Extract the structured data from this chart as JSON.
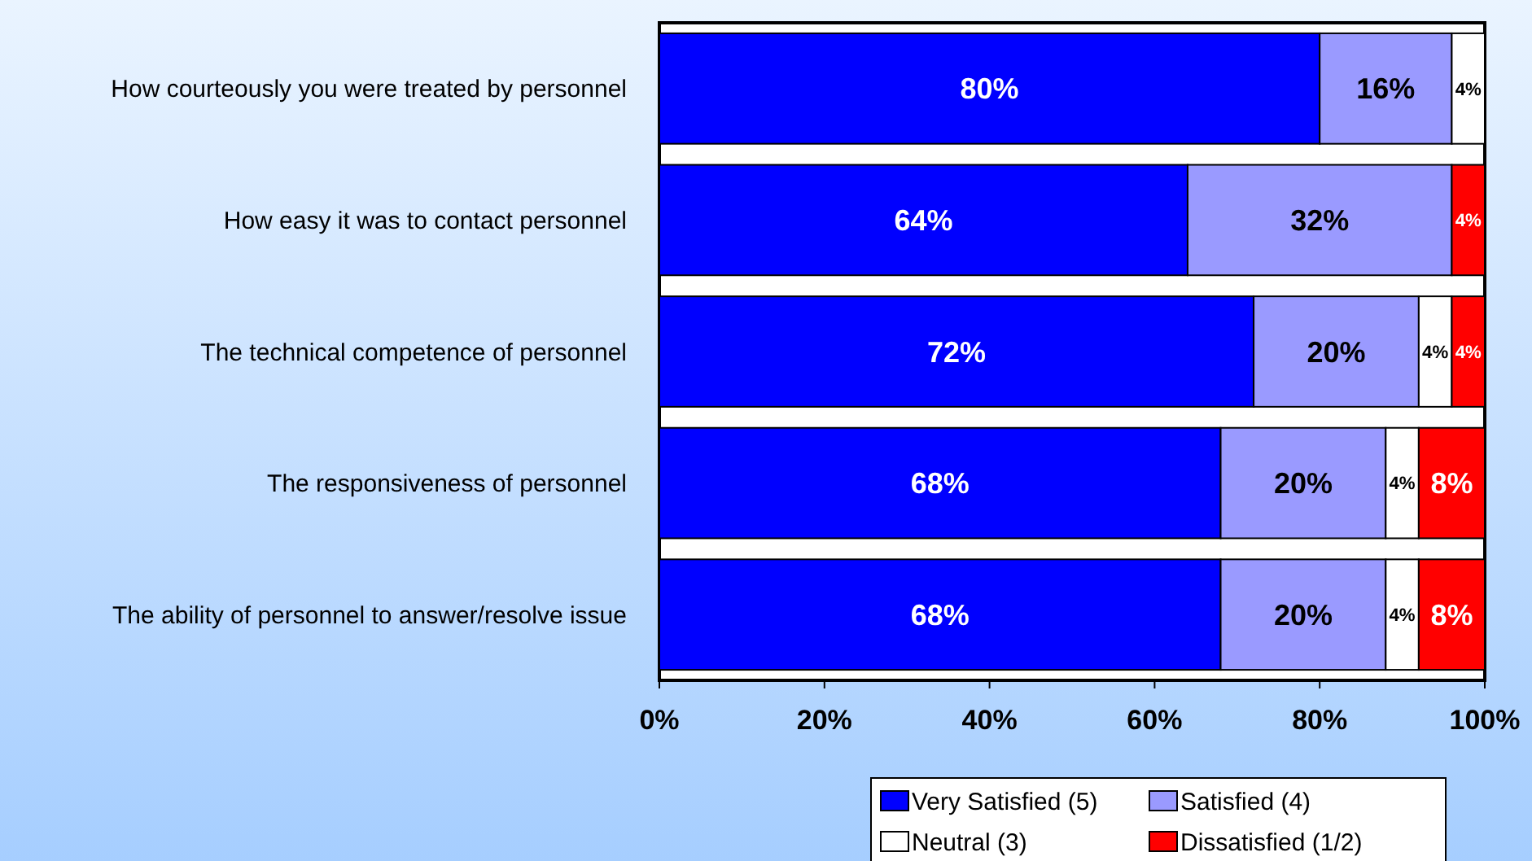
{
  "chart_data": {
    "type": "bar",
    "orientation": "horizontal",
    "stacked": true,
    "categories": [
      "How courteously you were treated by personnel",
      "How easy it was to contact personnel",
      "The technical competence of personnel",
      "The responsiveness of personnel",
      "The ability of personnel to answer/resolve issue"
    ],
    "series": [
      {
        "name": "Very Satisfied (5)",
        "color": "#0000ff",
        "values": [
          80,
          64,
          72,
          68,
          68
        ],
        "value_labels": [
          "80%",
          "64%",
          "72%",
          "68%",
          "68%"
        ]
      },
      {
        "name": "Satisfied (4)",
        "color": "#9a9aff",
        "values": [
          16,
          32,
          20,
          20,
          20
        ],
        "value_labels": [
          "16%",
          "32%",
          "20%",
          "20%",
          "20%"
        ]
      },
      {
        "name": "Neutral (3)",
        "color": "#ffffff",
        "values": [
          4,
          0,
          4,
          4,
          4
        ],
        "value_labels": [
          "4%",
          null,
          "4%",
          "4%",
          "4%"
        ]
      },
      {
        "name": "Dissatisfied (1/2)",
        "color": "#ff0000",
        "values": [
          0,
          4,
          4,
          8,
          8
        ],
        "value_labels": [
          null,
          "4%",
          "4%",
          "8%",
          "8%"
        ]
      }
    ],
    "xlim": [
      0,
      100
    ],
    "xticks": [
      {
        "value": 0,
        "label": "0%"
      },
      {
        "value": 20,
        "label": "20%"
      },
      {
        "value": 40,
        "label": "40%"
      },
      {
        "value": 60,
        "label": "60%"
      },
      {
        "value": 80,
        "label": "80%"
      },
      {
        "value": 100,
        "label": "100%"
      }
    ],
    "legend": "bottom"
  }
}
